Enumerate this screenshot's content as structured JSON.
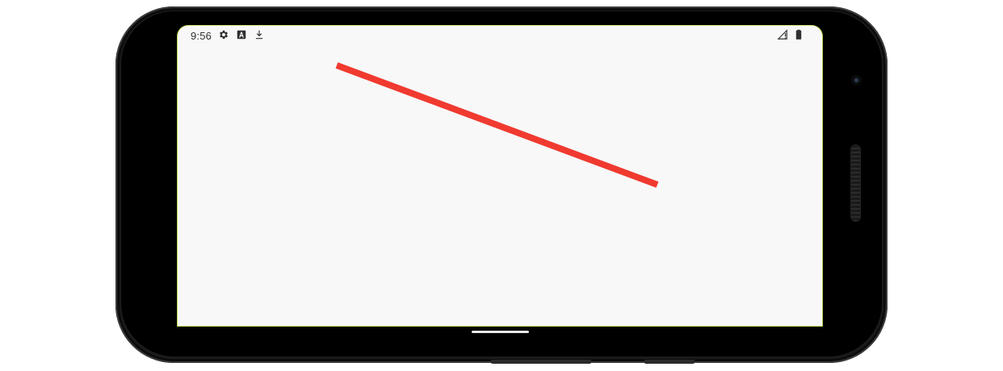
{
  "status_bar": {
    "time": "9:56",
    "icons": [
      "settings-icon",
      "accessibility-a-icon",
      "download-icon",
      "signal-no-data-icon",
      "battery-icon"
    ]
  },
  "drawing": {
    "shape": "line",
    "color": "#f03a30",
    "background": "#f8f8f8"
  },
  "colors": {
    "screen_border": "#b8d84a",
    "status_icon": "#303030",
    "phone_frame": "#1b1b1b"
  }
}
